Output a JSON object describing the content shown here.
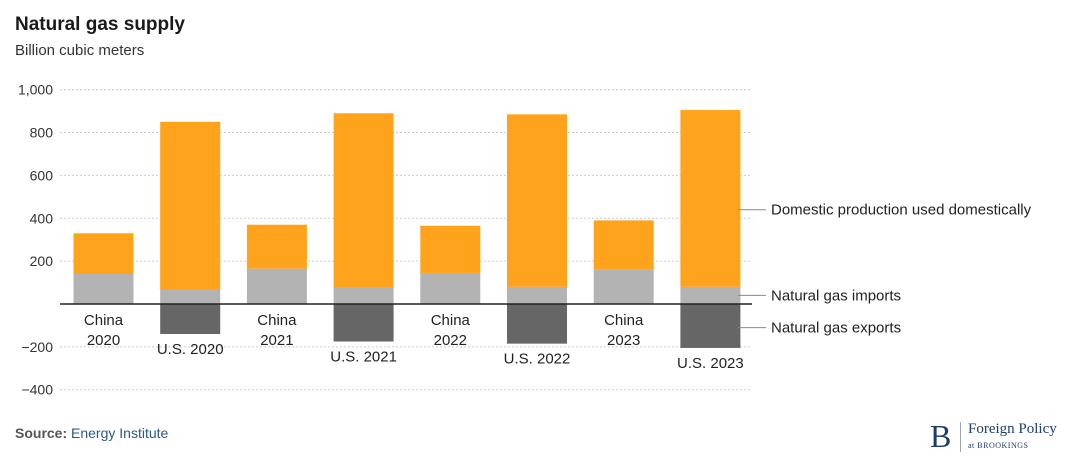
{
  "header": {
    "title": "Natural gas supply",
    "subtitle": "Billion cubic meters"
  },
  "footer": {
    "source_label": "Source:",
    "source_value": "Energy Institute"
  },
  "logo": {
    "mark": "B",
    "name": "Foreign Policy",
    "sub": "at BROOKINGS"
  },
  "colors": {
    "domestic": "#ffa21c",
    "imports": "#b3b3b3",
    "exports": "#666666",
    "grid": "#cccccc",
    "axis": "#222222"
  },
  "chart_data": {
    "type": "bar",
    "stacked": true,
    "title": "Natural gas supply",
    "ylabel": "Billion cubic meters",
    "ylim": [
      -400,
      1000
    ],
    "yticks": [
      -400,
      -200,
      0,
      200,
      400,
      600,
      800,
      1000
    ],
    "ytick_labels": [
      "−400",
      "−200",
      "",
      "200",
      "400",
      "600",
      "800",
      "1,000"
    ],
    "grid": true,
    "legend_placement": "right",
    "categories": [
      {
        "label": [
          "China",
          "2020"
        ],
        "position": "above"
      },
      {
        "label": [
          "U.S. 2020"
        ],
        "position": "below"
      },
      {
        "label": [
          "China",
          "2021"
        ],
        "position": "above"
      },
      {
        "label": [
          "U.S. 2021"
        ],
        "position": "below"
      },
      {
        "label": [
          "China",
          "2022"
        ],
        "position": "above"
      },
      {
        "label": [
          "U.S. 2022"
        ],
        "position": "below"
      },
      {
        "label": [
          "China",
          "2023"
        ],
        "position": "above"
      },
      {
        "label": [
          "U.S. 2023"
        ],
        "position": "below"
      }
    ],
    "series": [
      {
        "name": "Natural gas imports",
        "key": "imports",
        "values": [
          140,
          70,
          165,
          75,
          145,
          80,
          160,
          80
        ]
      },
      {
        "name": "Domestic production used domestically",
        "key": "domestic",
        "values": [
          190,
          780,
          205,
          815,
          220,
          805,
          230,
          825
        ]
      },
      {
        "name": "Natural gas exports",
        "key": "exports",
        "values": [
          0,
          -140,
          0,
          -175,
          0,
          -185,
          0,
          -205
        ]
      }
    ],
    "annotations": [
      {
        "text": "Domestic production used domestically",
        "series": "domestic"
      },
      {
        "text": "Natural gas imports",
        "series": "imports"
      },
      {
        "text": "Natural gas exports",
        "series": "exports"
      }
    ]
  }
}
